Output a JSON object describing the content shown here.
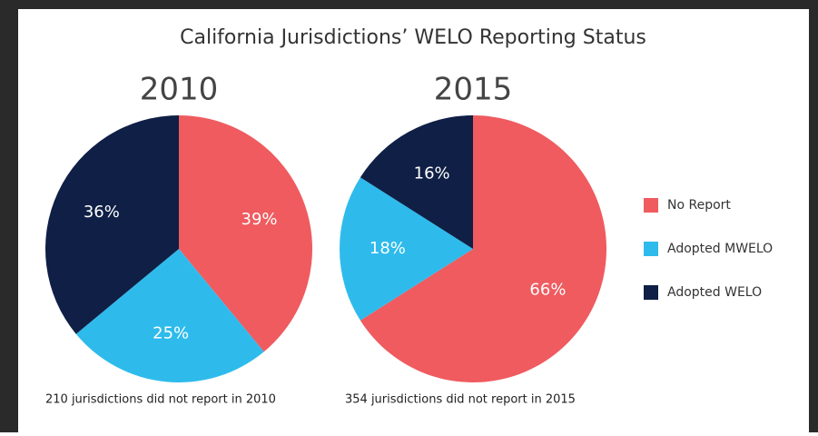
{
  "title": "California Jurisdictions’ WELO Reporting Status",
  "chart_data": [
    {
      "type": "pie",
      "title": "2010",
      "categories": [
        "No Report",
        "Adopted MWELO",
        "Adopted WELO"
      ],
      "values": [
        39,
        25,
        36
      ],
      "value_labels": [
        "39%",
        "25%",
        "36%"
      ],
      "colors": [
        "#ef5b5f",
        "#2ebbec",
        "#0f1f45"
      ],
      "annotation": "210 jurisdictions did not report in 2010"
    },
    {
      "type": "pie",
      "title": "2015",
      "categories": [
        "No Report",
        "Adopted MWELO",
        "Adopted WELO"
      ],
      "values": [
        66,
        18,
        16
      ],
      "value_labels": [
        "66%",
        "18%",
        "16%"
      ],
      "colors": [
        "#ef5b5f",
        "#2ebbec",
        "#0f1f45"
      ],
      "annotation": "354 jurisdictions did not report in 2015"
    }
  ]
}
